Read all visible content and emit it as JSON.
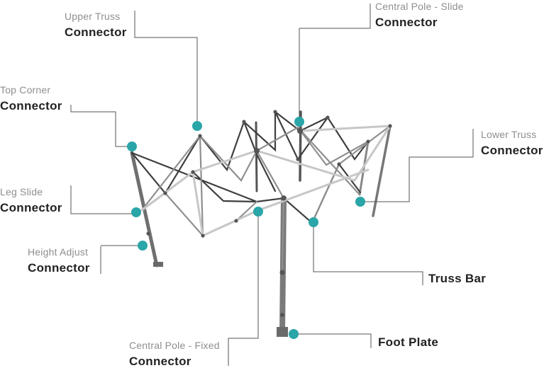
{
  "colors": {
    "accent": "#2aa5a8",
    "leader": "#555555",
    "frame_dark": "#3b3b3b",
    "frame_mid": "#8a8a8a",
    "frame_light": "#c4c4c4"
  },
  "labels": {
    "upper_truss": {
      "sub": "Upper Truss",
      "main": "Connector"
    },
    "central_slide": {
      "sub": "Central Pole - Slide",
      "main": "Connector"
    },
    "top_corner": {
      "sub": "Top Corner",
      "main": "Connector"
    },
    "lower_truss": {
      "sub": "Lower Truss",
      "main": "Connector"
    },
    "leg_slide": {
      "sub": "Leg Slide",
      "main": "Connector"
    },
    "height_adjust": {
      "sub": "Height Adjust",
      "main": "Connector"
    },
    "truss_bar": {
      "main": "Truss Bar"
    },
    "central_fixed": {
      "sub": "Central Pole - Fixed",
      "main": "Connector"
    },
    "foot_plate": {
      "main": "Foot Plate"
    }
  }
}
